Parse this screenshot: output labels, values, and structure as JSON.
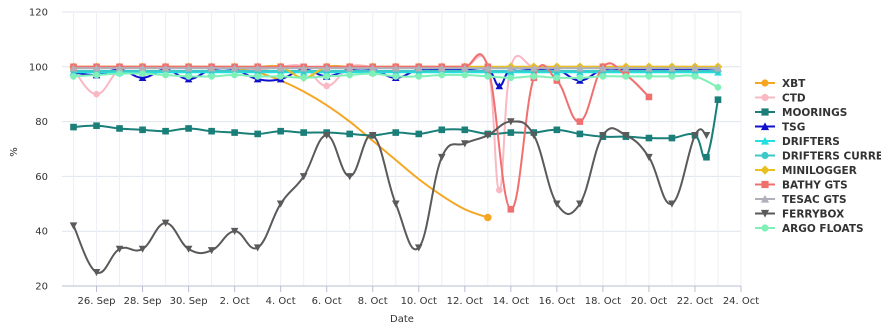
{
  "chart_data": {
    "type": "line",
    "title": "",
    "xlabel": "Date",
    "ylabel": "%",
    "ylim": [
      20,
      120
    ],
    "yticks": [
      20,
      40,
      60,
      80,
      100,
      120
    ],
    "xlim": [
      0,
      28.5
    ],
    "x_ticks": [
      {
        "x": 1.5,
        "label": "26. Sep"
      },
      {
        "x": 3.5,
        "label": "28. Sep"
      },
      {
        "x": 5.5,
        "label": "30. Sep"
      },
      {
        "x": 7.5,
        "label": "2. Oct"
      },
      {
        "x": 9.5,
        "label": "4. Oct"
      },
      {
        "x": 11.5,
        "label": "6. Oct"
      },
      {
        "x": 13.5,
        "label": "8. Oct"
      },
      {
        "x": 15.5,
        "label": "10. Oct"
      },
      {
        "x": 17.5,
        "label": "12. Oct"
      },
      {
        "x": 19.5,
        "label": "14. Oct"
      },
      {
        "x": 21.5,
        "label": "16. Oct"
      },
      {
        "x": 23.5,
        "label": "18. Oct"
      },
      {
        "x": 25.5,
        "label": "20. Oct"
      },
      {
        "x": 27.5,
        "label": "22. Oct"
      },
      {
        "x": 29.5,
        "label": "24. Oct"
      }
    ],
    "grid": true,
    "legend_position": "right",
    "series": [
      {
        "name": "XBT",
        "color": "#f5a623",
        "marker": "circle",
        "smooth": true,
        "x": [
          0.5,
          1.5,
          2.5,
          3.5,
          4.5,
          5.5,
          6.5,
          7.5,
          8.5,
          9.5,
          10.5,
          11.5,
          12.5,
          13.5,
          14.5,
          15.5,
          16.5,
          17.5,
          18.5
        ],
        "y": [
          100,
          100,
          100,
          100,
          100,
          100,
          100,
          99.5,
          98,
          95,
          91,
          86,
          80,
          73,
          66,
          59,
          53,
          48,
          45
        ]
      },
      {
        "name": "CTD",
        "color": "#f9b8c3",
        "marker": "circle",
        "x": [
          0.5,
          1.5,
          2.5,
          3.5,
          4.5,
          5.5,
          6.5,
          7.5,
          8.5,
          9.5,
          10.5,
          11.5,
          12.5,
          13.5,
          14.5,
          15.5,
          16.5,
          17.5,
          18.5,
          19,
          19.5,
          20.5,
          21.5,
          22.5,
          23.5,
          24.5,
          25.5,
          26.5,
          27.5,
          28.5
        ],
        "y": [
          99,
          90,
          99,
          100,
          100,
          100,
          100,
          100,
          99,
          100,
          100,
          93,
          100,
          100,
          100,
          100,
          100,
          100,
          100,
          55,
          100,
          100,
          100,
          100,
          100,
          100,
          100,
          100,
          100,
          100
        ]
      },
      {
        "name": "MOORINGS",
        "color": "#1a7f78",
        "marker": "square",
        "x": [
          0.5,
          1.5,
          2.5,
          3.5,
          4.5,
          5.5,
          6.5,
          7.5,
          8.5,
          9.5,
          10.5,
          11.5,
          12.5,
          13.5,
          14.5,
          15.5,
          16.5,
          17.5,
          18.5,
          19.5,
          20.5,
          21.5,
          22.5,
          23.5,
          24.5,
          25.5,
          26.5,
          27.5,
          28,
          28.5
        ],
        "y": [
          78,
          78.5,
          77.5,
          77,
          76.5,
          77.5,
          76.5,
          76,
          75.5,
          76.5,
          76,
          76,
          75.5,
          75,
          76,
          75.5,
          77,
          77,
          75.5,
          76,
          76,
          77,
          75.5,
          74.5,
          74.5,
          74,
          74,
          75,
          67,
          88
        ]
      },
      {
        "name": "TSG",
        "color": "#1010cc",
        "marker": "triangle",
        "x": [
          0.5,
          1.5,
          2.5,
          3.5,
          4.5,
          5.5,
          6.5,
          7.5,
          8.5,
          9.5,
          10.5,
          11.5,
          12.5,
          13.5,
          14.5,
          15.5,
          16.5,
          17.5,
          18.5,
          19,
          19.5,
          20.5,
          21.5,
          22.5,
          23.5,
          24.5,
          25.5,
          26.5,
          27.5,
          28.5
        ],
        "y": [
          98,
          97,
          99,
          96,
          99,
          95.5,
          99,
          99,
          95.5,
          95.5,
          99,
          96.5,
          99,
          99,
          96,
          99,
          99,
          99,
          99,
          93,
          99,
          99,
          99,
          95,
          99,
          99,
          99,
          99,
          99,
          99.5
        ]
      },
      {
        "name": "DRIFTERS",
        "color": "#22e0e0",
        "marker": "triangle",
        "x": [
          0.5,
          1.5,
          2.5,
          3.5,
          4.5,
          5.5,
          6.5,
          7.5,
          8.5,
          9.5,
          10.5,
          11.5,
          12.5,
          13.5,
          14.5,
          15.5,
          16.5,
          17.5,
          18.5,
          19.5,
          20.5,
          21.5,
          22.5,
          23.5,
          24.5,
          25.5,
          26.5,
          27.5,
          28.5
        ],
        "y": [
          98,
          98,
          98,
          98,
          98,
          98,
          98,
          98,
          98,
          98,
          98,
          98,
          98,
          98,
          98,
          98,
          98,
          98,
          98,
          98,
          98,
          98,
          98,
          98,
          98,
          98,
          98,
          98,
          98
        ]
      },
      {
        "name": "DRIFTERS CURRENT",
        "color": "#3cc8c8",
        "marker": "circle",
        "x": [
          0.5,
          1.5,
          2.5,
          3.5,
          4.5,
          5.5,
          6.5,
          7.5,
          8.5,
          9.5,
          10.5,
          11.5,
          12.5,
          13.5,
          14.5,
          15.5,
          16.5,
          17.5,
          18.5,
          19.5,
          20.5,
          21.5,
          22.5,
          23.5,
          24.5,
          25.5,
          26.5,
          27.5,
          28.5
        ],
        "y": [
          98.5,
          98.5,
          98.5,
          98.5,
          98.5,
          98.5,
          98.5,
          98.5,
          98.5,
          98.5,
          98.5,
          98.5,
          98.5,
          98.5,
          98.5,
          98.5,
          98.5,
          98.5,
          98.5,
          98.5,
          98.5,
          98.5,
          98.5,
          98.5,
          98.5,
          98.5,
          98.5,
          98.5,
          98.5
        ]
      },
      {
        "name": "MINILOGGER",
        "color": "#e8c020",
        "marker": "diamond",
        "x": [
          0.5,
          1.5,
          2.5,
          3.5,
          4.5,
          5.5,
          6.5,
          7.5,
          8.5,
          9.5,
          10.5,
          11.5,
          12.5,
          13.5,
          14.5,
          15.5,
          16.5,
          17.5,
          18.5,
          19.5,
          20.5,
          21.5,
          22.5,
          23.5,
          24.5,
          25.5,
          26.5,
          27.5,
          28.5
        ],
        "y": [
          100,
          100,
          100,
          100,
          100,
          100,
          100,
          100,
          100,
          100,
          96,
          100,
          100,
          100,
          100,
          100,
          100,
          100,
          100,
          100,
          100,
          100,
          100,
          100,
          100,
          100,
          100,
          100,
          100
        ]
      },
      {
        "name": "BATHY GTS",
        "color": "#f07070",
        "marker": "square",
        "x": [
          0.5,
          1.5,
          2.5,
          3.5,
          4.5,
          5.5,
          6.5,
          7.5,
          8.5,
          9.5,
          10.5,
          11.5,
          12.5,
          13.5,
          14.5,
          15.5,
          16.5,
          17.5,
          18.5,
          19.5,
          20.5,
          21.5,
          22.5,
          23.5,
          24.5,
          25.5
        ],
        "y": [
          100,
          100,
          100,
          100,
          100,
          100,
          100,
          100,
          100,
          100,
          100,
          100,
          100,
          100,
          100,
          100,
          100,
          100,
          100,
          48,
          96,
          95,
          80,
          100,
          97,
          89
        ]
      },
      {
        "name": "TESAC GTS",
        "color": "#b0b0b8",
        "marker": "triangle",
        "x": [
          0.5,
          1.5,
          2.5,
          3.5,
          4.5,
          5.5,
          6.5,
          7.5,
          8.5,
          9.5,
          10.5,
          11.5,
          12.5,
          13.5,
          14.5,
          15.5,
          16.5,
          17.5,
          18.5,
          19.5,
          20.5,
          21.5,
          22.5,
          23.5,
          24.5,
          25.5,
          26.5,
          27.5,
          28.5
        ],
        "y": [
          99.5,
          99.5,
          99.5,
          99.5,
          99.5,
          99.5,
          99.5,
          99.5,
          99.5,
          99.5,
          99.5,
          99.5,
          99.5,
          99.5,
          99.5,
          99.5,
          99.5,
          99.5,
          99.5,
          99.5,
          99.5,
          99.5,
          99.5,
          99.5,
          99.5,
          99.5,
          99.5,
          99.5,
          99.5
        ]
      },
      {
        "name": "FERRYBOX",
        "color": "#5a5a5a",
        "marker": "triangle-down",
        "x": [
          0.5,
          1.5,
          2.5,
          3.5,
          4.5,
          5.5,
          6.5,
          7.5,
          8.5,
          9.5,
          10.5,
          11.5,
          12.5,
          13.5,
          14.5,
          15.5,
          16.5,
          17.5,
          18.5,
          19.5,
          20.5,
          21.5,
          22.5,
          23.5,
          24.5,
          25.5,
          26.5,
          27.5,
          28
        ],
        "y": [
          42,
          25,
          33.5,
          33.5,
          43,
          33.5,
          33,
          40,
          34,
          50,
          60,
          75,
          60,
          75,
          50,
          34,
          67,
          72,
          75,
          80,
          75,
          50,
          50,
          75,
          75,
          67,
          50,
          75,
          75
        ]
      },
      {
        "name": "ARGO FLOATS",
        "color": "#7ff0b8",
        "marker": "circle",
        "x": [
          0.5,
          1.5,
          2.5,
          3.5,
          4.5,
          5.5,
          6.5,
          7.5,
          8.5,
          9.5,
          10.5,
          11.5,
          12.5,
          13.5,
          14.5,
          15.5,
          16.5,
          17.5,
          18.5,
          19.5,
          20.5,
          21.5,
          22.5,
          23.5,
          24.5,
          25.5,
          26.5,
          27.5,
          28.5
        ],
        "y": [
          96.5,
          97,
          97.5,
          97.5,
          97,
          96.5,
          96.5,
          97,
          96.5,
          96.5,
          96,
          96.5,
          97,
          97.5,
          96.5,
          96.5,
          97,
          97,
          96.5,
          96,
          96.5,
          96,
          96,
          96.5,
          96.5,
          96.5,
          96.5,
          96.5,
          92.5
        ]
      }
    ]
  }
}
